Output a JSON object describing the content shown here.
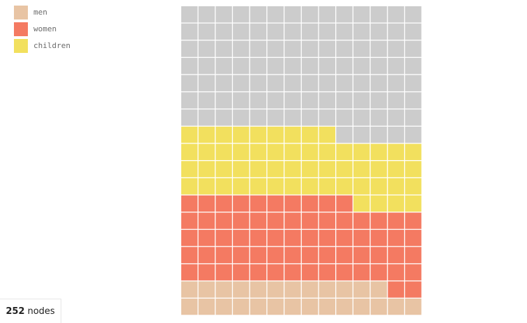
{
  "chart_data": {
    "type": "waffle",
    "columns": 14,
    "rows": 18,
    "fill_order": "bottom-up, left-to-right",
    "series": [
      {
        "name": "men",
        "value": 26,
        "color": "#e8c4a4"
      },
      {
        "name": "women",
        "value": 68,
        "color": "#f47a62"
      },
      {
        "name": "children",
        "value": 55,
        "color": "#f2e05e"
      }
    ],
    "empty": {
      "value": 103,
      "color": "#cccccc"
    },
    "legend_position": "top-left"
  },
  "counter": {
    "count": "252",
    "unit": "nodes"
  }
}
